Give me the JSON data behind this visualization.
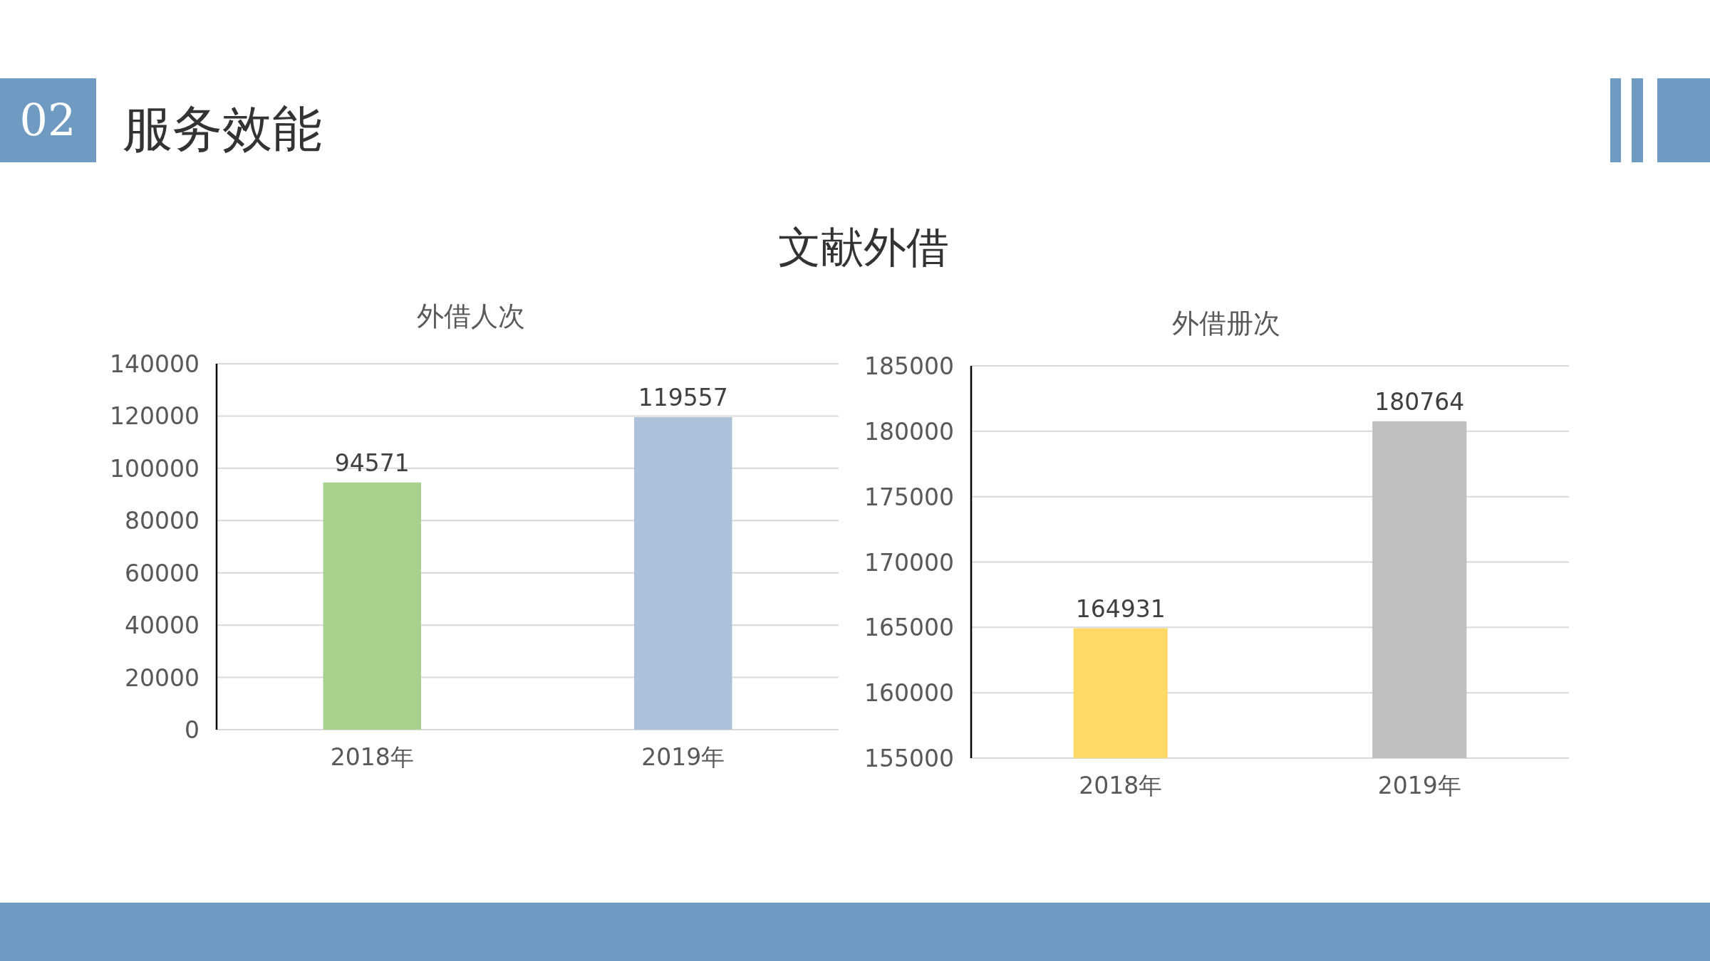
{
  "chart_data": [
    {
      "type": "other",
      "title": "文献外借",
      "annotations": [
        "02",
        "服务效能"
      ]
    },
    {
      "type": "bar",
      "title": "外借人次",
      "categories": [
        "2018年",
        "2019年"
      ],
      "values": [
        94571,
        119557
      ],
      "colors": [
        "#a9d18e",
        "#adc2da"
      ],
      "ylim": [
        0,
        140000
      ],
      "yticks": [
        0,
        20000,
        40000,
        60000,
        80000,
        100000,
        120000,
        140000
      ],
      "grid": "y",
      "data_labels": true
    },
    {
      "type": "bar",
      "title": "外借册次",
      "categories": [
        "2018年",
        "2019年"
      ],
      "values": [
        164931,
        180764
      ],
      "colors": [
        "#ffd966",
        "#bfbfbf"
      ],
      "ylim": [
        155000,
        185000
      ],
      "yticks": [
        155000,
        160000,
        165000,
        170000,
        175000,
        180000,
        185000
      ],
      "grid": "y",
      "data_labels": true
    }
  ]
}
